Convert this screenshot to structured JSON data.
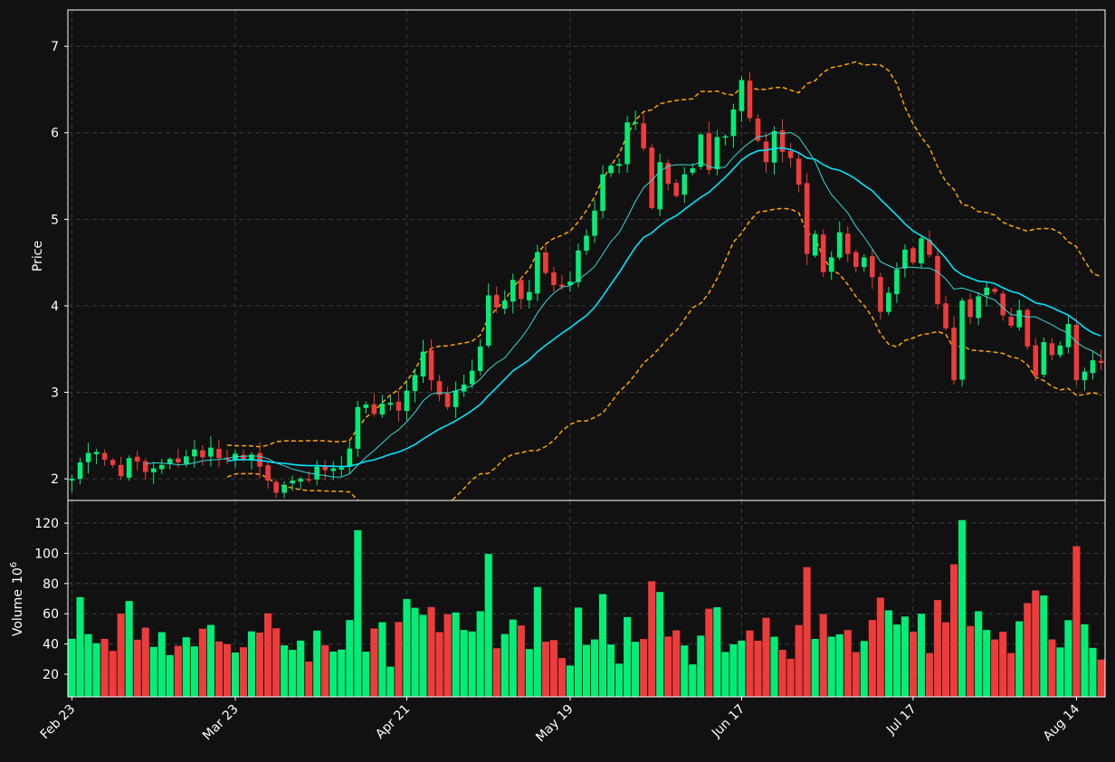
{
  "chart_data": {
    "type": "candlestick",
    "price_panel": {
      "ylabel": "Price",
      "ylim": [
        1.75,
        7.42
      ],
      "yticks": [
        2,
        3,
        4,
        5,
        6,
        7
      ]
    },
    "volume_panel": {
      "ylabel": "Volume",
      "ylabel_exponent": "10",
      "ylabel_exponent_power": "6",
      "ylim": [
        5,
        135
      ],
      "yticks": [
        20,
        40,
        60,
        80,
        100,
        120
      ]
    },
    "x_ticks": [
      {
        "label": "Feb 23",
        "index": 0
      },
      {
        "label": "Mar 23",
        "index": 20
      },
      {
        "label": "Apr 21",
        "index": 41
      },
      {
        "label": "May 19",
        "index": 61
      },
      {
        "label": "Jun 17",
        "index": 82
      },
      {
        "label": "Jul 17",
        "index": 103
      },
      {
        "label": "Aug 14",
        "index": 123
      }
    ],
    "grid": true,
    "colors": {
      "up": "#00ee77",
      "down": "#ee3b3b",
      "ma_fast": "#3ad6d6",
      "ma_slow": "#00e5ff",
      "bollinger": "#ffa500",
      "background": "#111111"
    },
    "close": [
      2.0,
      2.19,
      2.3,
      2.31,
      2.22,
      2.16,
      2.03,
      2.24,
      2.2,
      2.08,
      2.12,
      2.16,
      2.23,
      2.19,
      2.26,
      2.34,
      2.25,
      2.36,
      2.24,
      2.22,
      2.29,
      2.23,
      2.28,
      2.14,
      1.98,
      1.84,
      1.93,
      1.98,
      2.0,
      1.99,
      2.14,
      2.1,
      2.12,
      2.13,
      2.35,
      2.83,
      2.86,
      2.75,
      2.87,
      2.88,
      2.79,
      3.02,
      3.2,
      3.47,
      3.14,
      2.97,
      2.83,
      3.02,
      3.09,
      3.25,
      3.53,
      4.12,
      3.98,
      4.06,
      4.3,
      4.08,
      4.16,
      4.62,
      4.38,
      4.24,
      4.22,
      4.28,
      4.64,
      4.81,
      5.1,
      5.52,
      5.62,
      5.64,
      6.12,
      6.12,
      5.82,
      5.13,
      5.66,
      5.41,
      5.27,
      5.52,
      5.59,
      5.98,
      5.57,
      5.95,
      5.96,
      6.27,
      6.61,
      6.17,
      5.91,
      5.66,
      6.02,
      5.78,
      5.71,
      5.4,
      4.6,
      4.83,
      4.39,
      4.56,
      4.85,
      4.6,
      4.45,
      4.56,
      4.33,
      3.93,
      4.15,
      4.42,
      4.65,
      4.5,
      4.78,
      4.59,
      4.02,
      3.74,
      3.14,
      4.06,
      3.87,
      4.11,
      4.21,
      4.16,
      3.89,
      3.77,
      3.95,
      3.53,
      3.19,
      3.58,
      3.43,
      3.54,
      3.79,
      3.14,
      3.24,
      3.37,
      3.34
    ]
  }
}
